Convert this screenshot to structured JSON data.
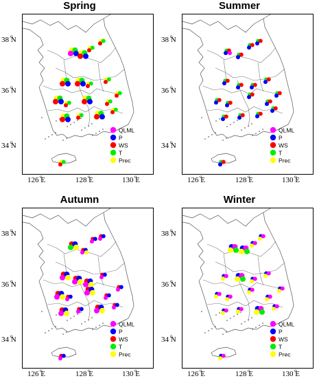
{
  "panels": [
    {
      "title": "Spring"
    },
    {
      "title": "Summer"
    },
    {
      "title": "Autumn"
    },
    {
      "title": "Winter"
    }
  ],
  "y_axis": {
    "ticks": [
      "38",
      "36",
      "34"
    ],
    "unit": "N"
  },
  "x_axis": {
    "ticks": [
      "126",
      "128",
      "130"
    ],
    "unit": "E"
  },
  "degree_symbol": "o",
  "legend": [
    {
      "label": "QLML",
      "color": "#ff00ff"
    },
    {
      "label": "P",
      "color": "#0000ff"
    },
    {
      "label": "WS",
      "color": "#ff0000"
    },
    {
      "label": "T",
      "color": "#00ee00"
    },
    {
      "label": "Prec",
      "color": "#ffff00"
    }
  ]
}
